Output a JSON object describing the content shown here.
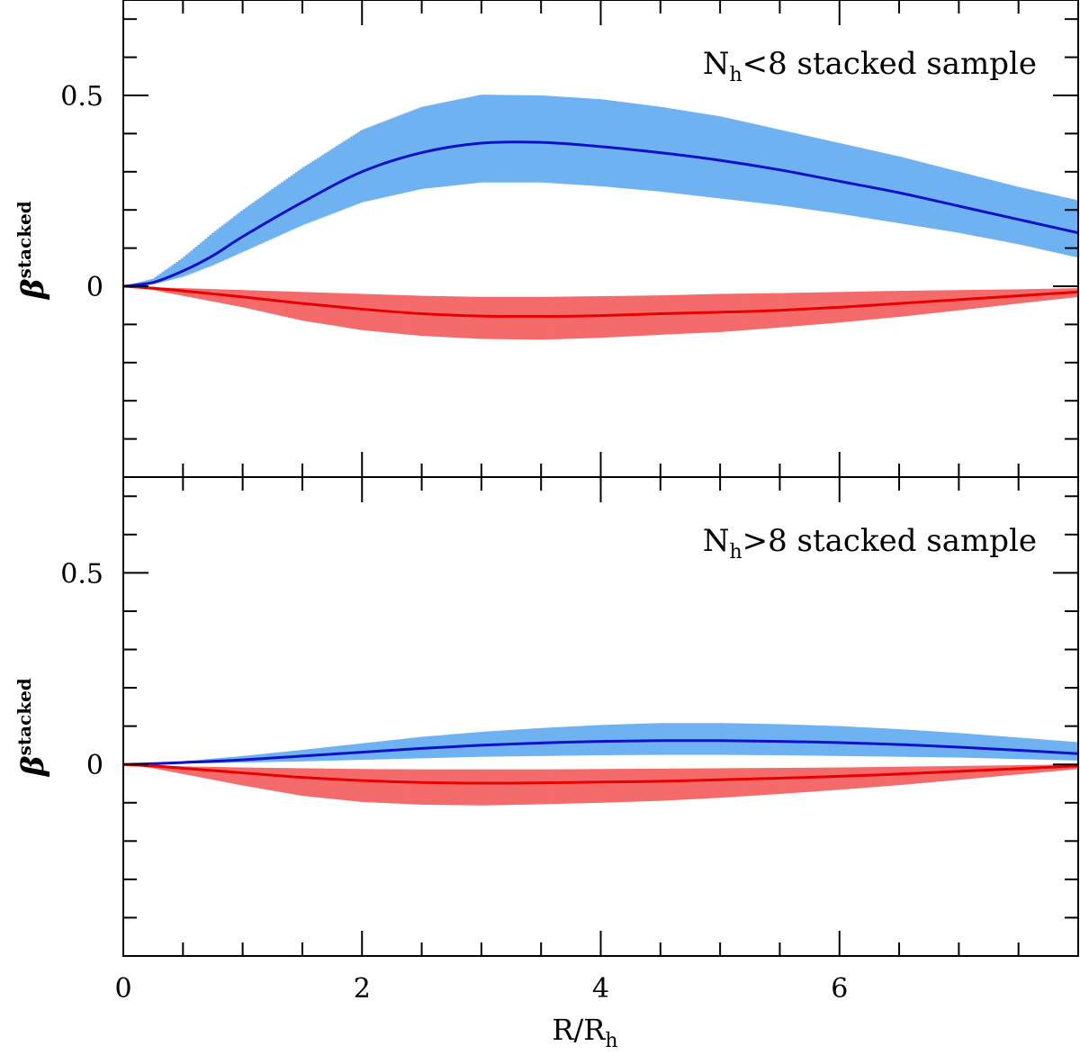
{
  "chart_data": [
    {
      "type": "line",
      "panel": "top",
      "annotation_main": "N",
      "annotation_sub": "h",
      "annotation_rest": "<8 stacked sample",
      "ylabel_main": "β",
      "ylabel_sup": "stacked",
      "xlim": [
        0,
        8
      ],
      "ylim": [
        -0.5,
        0.75
      ],
      "xticks": [
        "0",
        "2",
        "4",
        "6"
      ],
      "yticks": [
        "0",
        "0.5"
      ],
      "series": [
        {
          "name": "upper",
          "line_color": "#1010c8",
          "band_color": "#6fb2f2",
          "x": [
            0,
            0.25,
            0.5,
            0.75,
            1.0,
            1.5,
            2.0,
            2.5,
            3.0,
            3.5,
            4.0,
            4.5,
            5.0,
            5.5,
            6.0,
            6.5,
            7.0,
            7.5,
            8.0
          ],
          "y": [
            0,
            0.01,
            0.04,
            0.08,
            0.13,
            0.22,
            0.3,
            0.35,
            0.375,
            0.377,
            0.366,
            0.35,
            0.33,
            0.305,
            0.275,
            0.245,
            0.21,
            0.175,
            0.14
          ],
          "lower": [
            0,
            0.005,
            0.025,
            0.055,
            0.09,
            0.16,
            0.22,
            0.255,
            0.272,
            0.272,
            0.262,
            0.248,
            0.23,
            0.212,
            0.19,
            0.165,
            0.14,
            0.11,
            0.075
          ],
          "upper": [
            0,
            0.02,
            0.075,
            0.14,
            0.2,
            0.31,
            0.41,
            0.47,
            0.502,
            0.5,
            0.49,
            0.47,
            0.445,
            0.41,
            0.375,
            0.34,
            0.3,
            0.26,
            0.225
          ]
        },
        {
          "name": "lower",
          "line_color": "#e80000",
          "band_color": "#f46b6b",
          "x": [
            0,
            0.25,
            0.5,
            1.0,
            1.5,
            2.0,
            2.5,
            3.0,
            3.5,
            4.0,
            4.5,
            5.0,
            5.5,
            6.0,
            6.5,
            7.0,
            7.5,
            8.0
          ],
          "y": [
            0,
            -0.005,
            -0.012,
            -0.028,
            -0.045,
            -0.06,
            -0.072,
            -0.078,
            -0.079,
            -0.077,
            -0.072,
            -0.068,
            -0.063,
            -0.055,
            -0.045,
            -0.035,
            -0.025,
            -0.015
          ],
          "lower": [
            0,
            -0.01,
            -0.025,
            -0.055,
            -0.09,
            -0.115,
            -0.13,
            -0.138,
            -0.14,
            -0.135,
            -0.127,
            -0.12,
            -0.108,
            -0.095,
            -0.08,
            -0.063,
            -0.045,
            -0.028
          ],
          "upper": [
            0,
            -0.003,
            -0.005,
            -0.01,
            -0.015,
            -0.02,
            -0.025,
            -0.028,
            -0.028,
            -0.026,
            -0.024,
            -0.02,
            -0.018,
            -0.015,
            -0.012,
            -0.01,
            -0.008,
            -0.005
          ]
        }
      ]
    },
    {
      "type": "line",
      "panel": "bottom",
      "annotation_main": "N",
      "annotation_sub": "h",
      "annotation_rest": ">8 stacked sample",
      "ylabel_main": "β",
      "ylabel_sup": "stacked",
      "xlabel_main": "R/R",
      "xlabel_sub": "h",
      "xlim": [
        0,
        8
      ],
      "ylim": [
        -0.5,
        0.75
      ],
      "xticks": [
        "0",
        "2",
        "4",
        "6"
      ],
      "yticks": [
        "0",
        "0.5"
      ],
      "series": [
        {
          "name": "upper",
          "line_color": "#1010c8",
          "band_color": "#6fb2f2",
          "x": [
            0,
            0.25,
            0.5,
            1.0,
            1.5,
            2.0,
            2.5,
            3.0,
            3.5,
            4.0,
            4.5,
            5.0,
            5.5,
            6.0,
            6.5,
            7.0,
            7.5,
            8.0
          ],
          "y": [
            0,
            0.002,
            0.005,
            0.012,
            0.022,
            0.032,
            0.042,
            0.05,
            0.056,
            0.06,
            0.062,
            0.062,
            0.06,
            0.057,
            0.052,
            0.045,
            0.037,
            0.028
          ],
          "lower": [
            0,
            0.001,
            0.002,
            0.005,
            0.008,
            0.012,
            0.016,
            0.02,
            0.022,
            0.024,
            0.025,
            0.025,
            0.024,
            0.022,
            0.02,
            0.018,
            0.014,
            0.01
          ],
          "upper": [
            0,
            0.003,
            0.008,
            0.022,
            0.038,
            0.055,
            0.072,
            0.085,
            0.095,
            0.103,
            0.108,
            0.108,
            0.105,
            0.1,
            0.092,
            0.082,
            0.07,
            0.058
          ]
        },
        {
          "name": "lower",
          "line_color": "#e80000",
          "band_color": "#f46b6b",
          "x": [
            0,
            0.25,
            0.5,
            1.0,
            1.5,
            2.0,
            2.5,
            3.0,
            3.5,
            4.0,
            4.5,
            5.0,
            5.5,
            6.0,
            6.5,
            7.0,
            7.5,
            8.0
          ],
          "y": [
            0,
            -0.004,
            -0.01,
            -0.022,
            -0.034,
            -0.042,
            -0.047,
            -0.049,
            -0.048,
            -0.046,
            -0.044,
            -0.04,
            -0.036,
            -0.031,
            -0.025,
            -0.018,
            -0.011,
            -0.004
          ],
          "lower": [
            0,
            -0.01,
            -0.025,
            -0.055,
            -0.082,
            -0.098,
            -0.105,
            -0.107,
            -0.104,
            -0.1,
            -0.095,
            -0.087,
            -0.077,
            -0.066,
            -0.054,
            -0.04,
            -0.026,
            -0.012
          ],
          "upper": [
            0,
            -0.002,
            -0.005,
            -0.008,
            -0.01,
            -0.012,
            -0.013,
            -0.013,
            -0.013,
            -0.012,
            -0.011,
            -0.01,
            -0.009,
            -0.008,
            -0.006,
            -0.004,
            -0.002,
            0
          ]
        }
      ]
    }
  ]
}
